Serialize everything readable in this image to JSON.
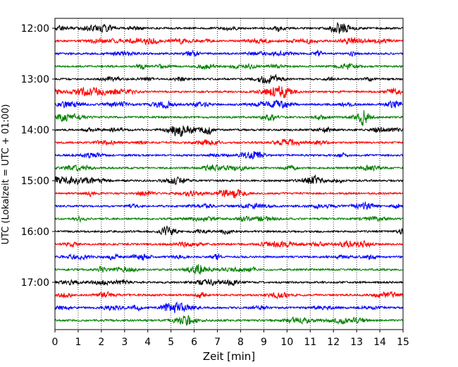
{
  "chart_data": {
    "type": "line",
    "title": "",
    "xlabel": "Zeit  [min]",
    "ylabel": "UTC (Lokalzeit = UTC + 01:00)",
    "xlim": [
      0,
      15
    ],
    "x_ticks": [
      0,
      1,
      2,
      3,
      4,
      5,
      6,
      7,
      8,
      9,
      10,
      11,
      12,
      13,
      14,
      15
    ],
    "x_tick_labels": [
      "0",
      "1",
      "2",
      "3",
      "4",
      "5",
      "6",
      "7",
      "8",
      "9",
      "10",
      "11",
      "12",
      "13",
      "14",
      "15"
    ],
    "y_tick_labels": [
      "12:00",
      "13:00",
      "14:00",
      "15:00",
      "16:00",
      "17:00"
    ],
    "y_ticks_trace_index": [
      0,
      4,
      8,
      12,
      16,
      20
    ],
    "vertical_grid": true,
    "grid_style": "dotted",
    "trace_count": 24,
    "trace_minutes": 15,
    "trace_color_cycle": [
      "#000000",
      "#ff0000",
      "#0000ff",
      "#008000"
    ],
    "trace_start_times": [
      "12:00",
      "12:15",
      "12:30",
      "12:45",
      "13:00",
      "13:15",
      "13:30",
      "13:45",
      "14:00",
      "14:15",
      "14:30",
      "14:45",
      "15:00",
      "15:15",
      "15:30",
      "15:45",
      "16:00",
      "16:15",
      "16:30",
      "16:45",
      "17:00",
      "17:15",
      "17:30",
      "17:45"
    ]
  }
}
